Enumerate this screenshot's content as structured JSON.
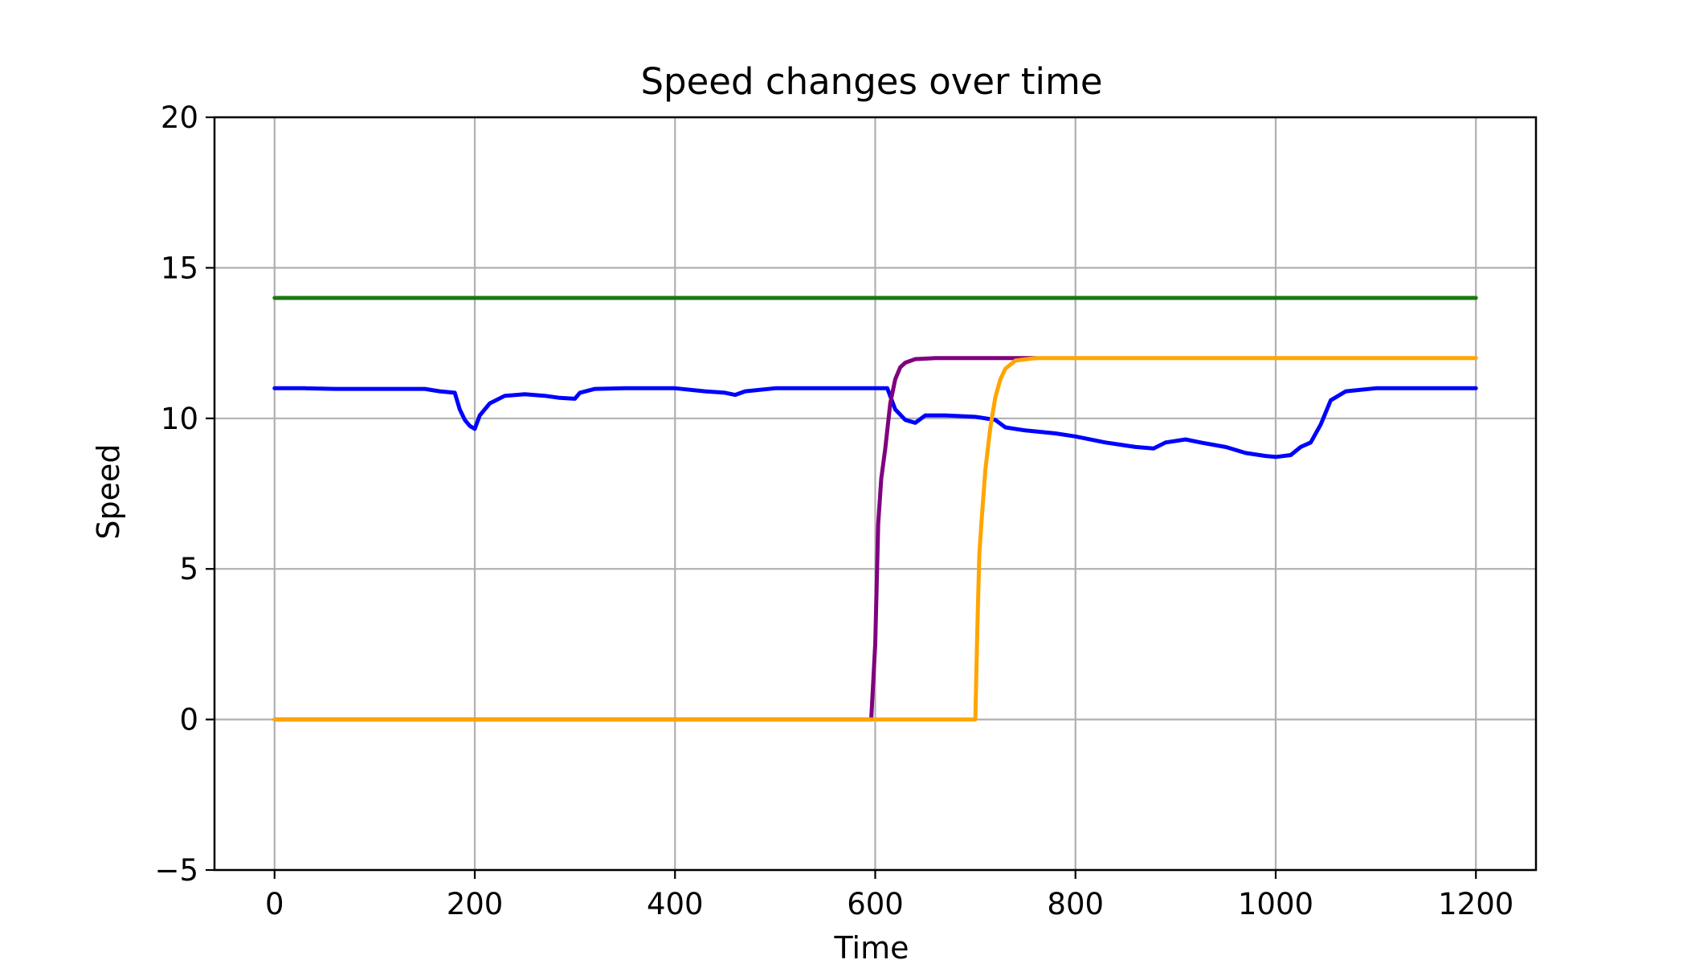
{
  "chart_data": {
    "type": "line",
    "title": "Speed changes over time",
    "xlabel": "Time",
    "ylabel": "Speed",
    "xlim": [
      -60,
      1260
    ],
    "ylim": [
      -5,
      20
    ],
    "xticks": [
      0,
      200,
      400,
      600,
      800,
      1000,
      1200
    ],
    "yticks": [
      -5,
      0,
      5,
      10,
      15,
      20
    ],
    "xtick_labels": [
      "0",
      "200",
      "400",
      "600",
      "800",
      "1000",
      "1200"
    ],
    "ytick_labels": [
      "−5",
      "0",
      "5",
      "10",
      "15",
      "20"
    ],
    "grid": true,
    "series": [
      {
        "color": "#1a7a10",
        "x": [
          0,
          1200
        ],
        "y": [
          14,
          14
        ]
      },
      {
        "color": "#0000ff",
        "x": [
          0,
          30,
          60,
          100,
          150,
          165,
          180,
          185,
          190,
          195,
          200,
          205,
          215,
          230,
          250,
          270,
          285,
          300,
          305,
          320,
          350,
          400,
          430,
          450,
          460,
          470,
          500,
          550,
          600,
          612,
          620,
          630,
          640,
          650,
          670,
          700,
          720,
          730,
          750,
          780,
          800,
          830,
          860,
          878,
          890,
          910,
          925,
          950,
          970,
          990,
          1000,
          1015,
          1025,
          1035,
          1045,
          1055,
          1070,
          1100,
          1150,
          1200
        ],
        "y": [
          11,
          11,
          10.98,
          10.98,
          10.98,
          10.9,
          10.85,
          10.3,
          9.95,
          9.75,
          9.65,
          10.1,
          10.5,
          10.75,
          10.8,
          10.75,
          10.68,
          10.65,
          10.85,
          10.98,
          11,
          11,
          10.9,
          10.85,
          10.78,
          10.9,
          11,
          11,
          11,
          11,
          10.3,
          9.95,
          9.85,
          10.1,
          10.1,
          10.05,
          9.95,
          9.7,
          9.6,
          9.5,
          9.4,
          9.2,
          9.05,
          9.0,
          9.2,
          9.3,
          9.2,
          9.05,
          8.85,
          8.75,
          8.72,
          8.78,
          9.05,
          9.2,
          9.8,
          10.6,
          10.9,
          11,
          11,
          11
        ]
      },
      {
        "color": "#800080",
        "x": [
          0,
          596,
          600,
          603,
          606,
          610,
          615,
          620,
          625,
          630,
          640,
          660,
          700,
          760
        ],
        "y": [
          0,
          0,
          2.5,
          6.5,
          8.0,
          9.0,
          10.5,
          11.3,
          11.7,
          11.85,
          11.97,
          12,
          12,
          12
        ]
      },
      {
        "color": "#ffa500",
        "x": [
          0,
          700,
          702,
          704,
          706,
          710,
          715,
          720,
          725,
          730,
          740,
          760,
          800,
          1200
        ],
        "y": [
          0,
          0,
          3.0,
          5.5,
          6.5,
          8.3,
          9.7,
          10.7,
          11.3,
          11.65,
          11.92,
          12,
          12,
          12
        ]
      }
    ]
  }
}
